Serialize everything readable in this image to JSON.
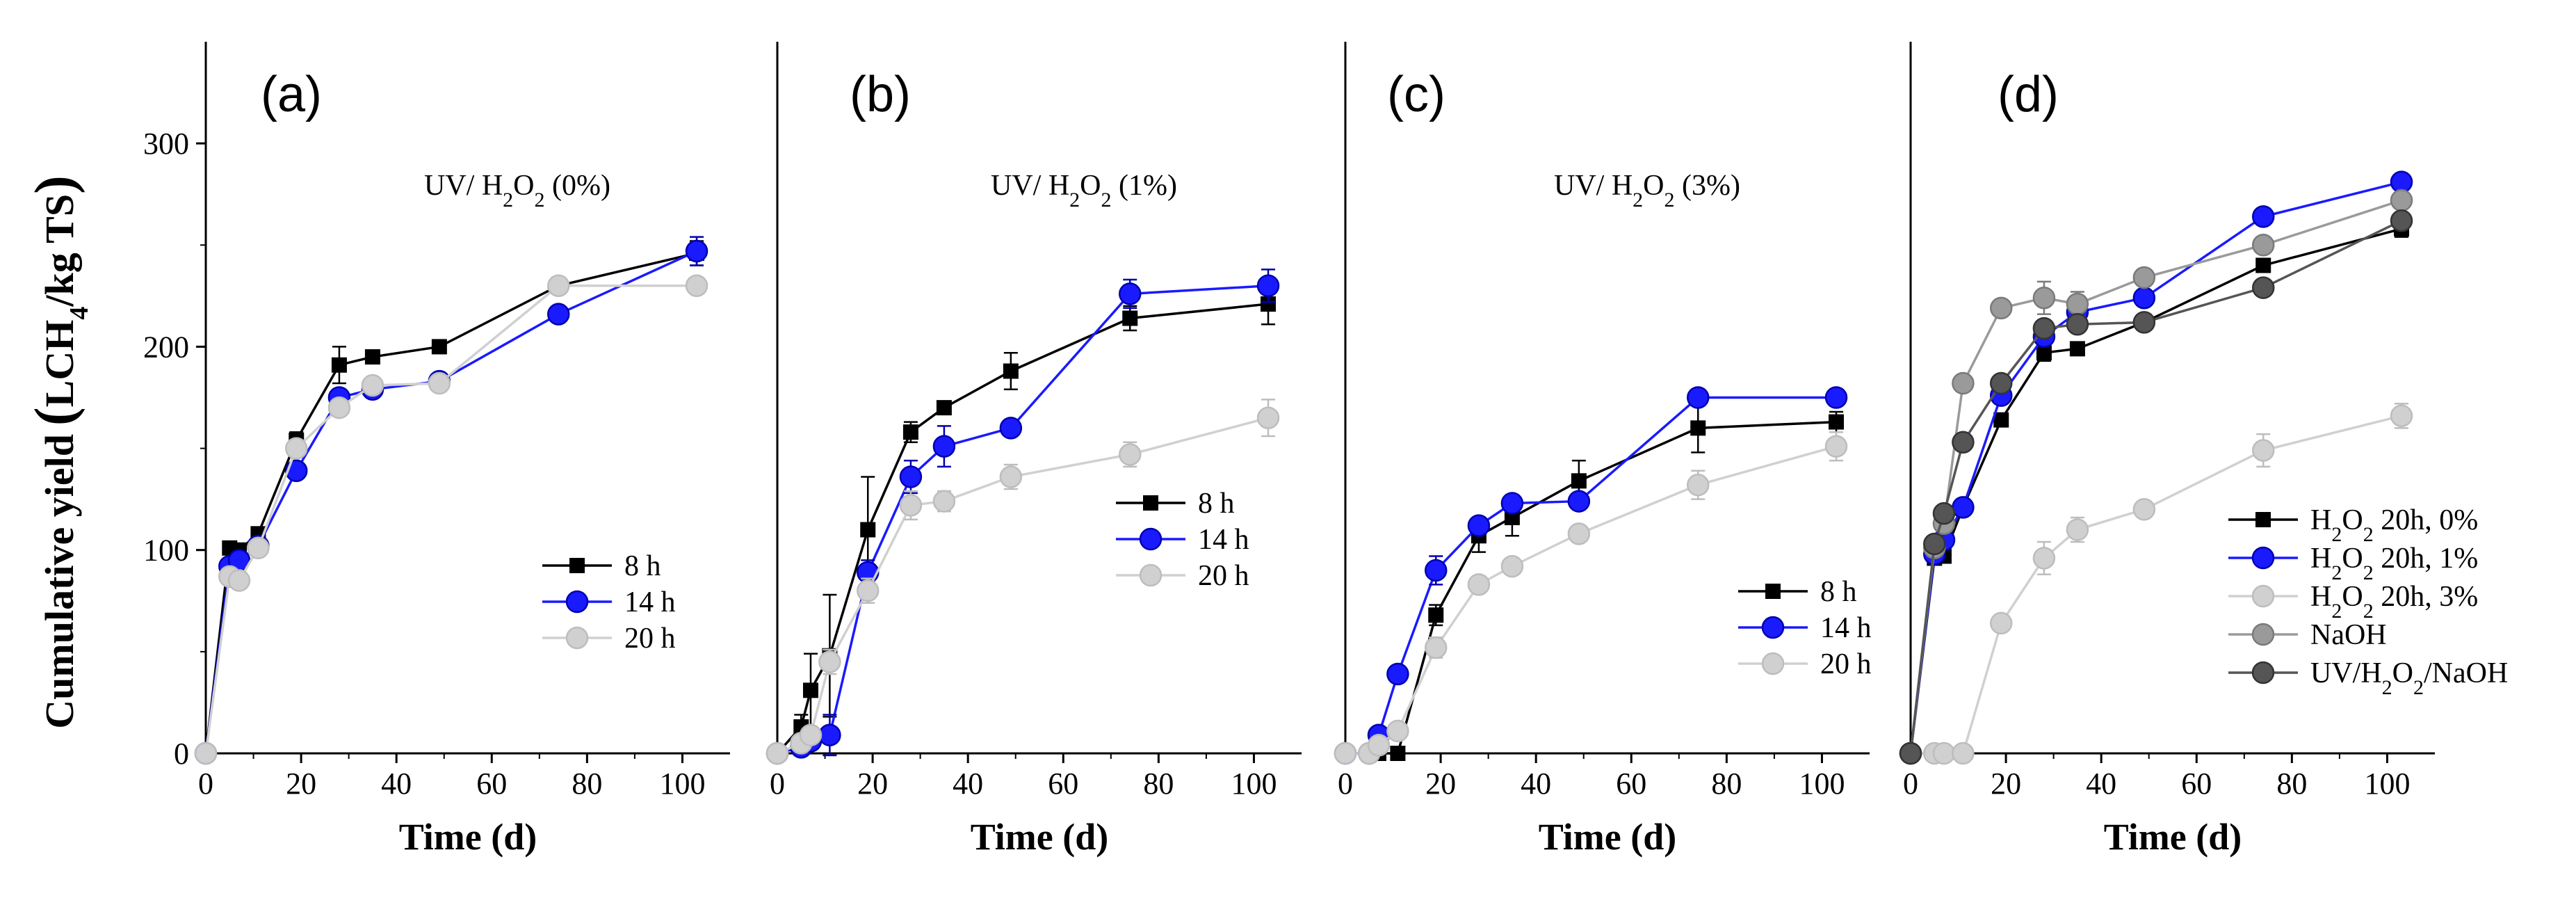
{
  "figure": {
    "y_axis_title": "Cumulative yield (LCH4/kg TS)",
    "y_axis_title_parts": {
      "pre": "Cumulative yield",
      "lpar": "(",
      "unit_a": "LCH",
      "sub": "4",
      "unit_b": "/kg TS",
      "rpar": ")"
    }
  },
  "chart_data": [
    {
      "type": "line",
      "panel_label": "(a)",
      "annotation": {
        "pre": "UV/ H",
        "sub1": "2",
        "mid": "O",
        "sub2": "2",
        "post": " (0%)"
      },
      "xlabel": "Time (d)",
      "ylabel": "Cumulative yield (LCH4/kg TS)",
      "xlim": [
        0,
        110
      ],
      "ylim": [
        0,
        350
      ],
      "x_ticks": [
        0,
        20,
        40,
        60,
        80,
        100
      ],
      "y_ticks": [
        0,
        100,
        200,
        300
      ],
      "legend_position": "center-right",
      "series": [
        {
          "name": "8 h",
          "color": "#000000",
          "marker": "square",
          "x": [
            0,
            5,
            7,
            11,
            19,
            28,
            35,
            49,
            74,
            103
          ],
          "y": [
            0,
            101,
            100,
            108,
            154,
            191,
            195,
            200,
            230,
            246
          ],
          "err": [
            0,
            3,
            3,
            3,
            4,
            9,
            3,
            3,
            4,
            6
          ]
        },
        {
          "name": "14 h",
          "color": "#1a1aff",
          "marker": "circle",
          "x": [
            0,
            5,
            7,
            11,
            19,
            28,
            35,
            49,
            74,
            103
          ],
          "y": [
            0,
            92,
            95,
            102,
            139,
            175,
            179,
            183,
            216,
            247
          ],
          "err": [
            0,
            3,
            3,
            3,
            4,
            4,
            3,
            3,
            3,
            7
          ]
        },
        {
          "name": "20 h",
          "color": "#d0d0d0",
          "marker": "circle",
          "x": [
            0,
            5,
            7,
            11,
            19,
            28,
            35,
            49,
            74,
            103
          ],
          "y": [
            0,
            87,
            85,
            101,
            150,
            170,
            181,
            182,
            230,
            230
          ],
          "err": [
            0,
            3,
            3,
            3,
            4,
            4,
            3,
            4,
            4,
            3
          ]
        }
      ]
    },
    {
      "type": "line",
      "panel_label": "(b)",
      "annotation": {
        "pre": "UV/ H",
        "sub1": "2",
        "mid": "O",
        "sub2": "2",
        "post": " (1%)"
      },
      "xlabel": "Time (d)",
      "ylabel": "",
      "xlim": [
        0,
        110
      ],
      "ylim": [
        0,
        350
      ],
      "x_ticks": [
        0,
        20,
        40,
        60,
        80,
        100
      ],
      "y_ticks": [],
      "legend_position": "center-right",
      "series": [
        {
          "name": "8 h",
          "color": "#000000",
          "marker": "square",
          "x": [
            0,
            5,
            7,
            11,
            19,
            28,
            35,
            49,
            74,
            103
          ],
          "y": [
            0,
            13,
            31,
            48,
            110,
            158,
            170,
            188,
            214,
            221
          ],
          "err": [
            0,
            6,
            18,
            30,
            26,
            5,
            3,
            9,
            6,
            10
          ]
        },
        {
          "name": "14 h",
          "color": "#1a1aff",
          "marker": "circle",
          "x": [
            0,
            5,
            7,
            11,
            19,
            28,
            35,
            49,
            74,
            103
          ],
          "y": [
            0,
            3,
            6,
            9,
            89,
            136,
            151,
            160,
            226,
            230
          ],
          "err": [
            0,
            3,
            3,
            10,
            6,
            8,
            10,
            4,
            7,
            8
          ]
        },
        {
          "name": "20 h",
          "color": "#d0d0d0",
          "marker": "circle",
          "x": [
            0,
            5,
            7,
            11,
            19,
            28,
            35,
            49,
            74,
            103
          ],
          "y": [
            0,
            5,
            9,
            45,
            80,
            122,
            124,
            136,
            147,
            165
          ],
          "err": [
            0,
            3,
            4,
            6,
            6,
            7,
            5,
            6,
            6,
            9
          ]
        }
      ]
    },
    {
      "type": "line",
      "panel_label": "(c)",
      "annotation": {
        "pre": "UV/ H",
        "sub1": "2",
        "mid": "O",
        "sub2": "2",
        "post": " (3%)"
      },
      "xlabel": "Time (d)",
      "ylabel": "",
      "xlim": [
        0,
        110
      ],
      "ylim": [
        0,
        350
      ],
      "x_ticks": [
        0,
        20,
        40,
        60,
        80,
        100
      ],
      "y_ticks": [],
      "legend_position": "center-right",
      "series": [
        {
          "name": "8 h",
          "color": "#000000",
          "marker": "square",
          "x": [
            0,
            5,
            7,
            11,
            19,
            28,
            35,
            49,
            74,
            103
          ],
          "y": [
            0,
            0,
            0,
            0,
            68,
            107,
            116,
            134,
            160,
            163
          ],
          "err": [
            0,
            0,
            0,
            0,
            5,
            8,
            9,
            10,
            12,
            5
          ]
        },
        {
          "name": "14 h",
          "color": "#1a1aff",
          "marker": "circle",
          "x": [
            0,
            5,
            7,
            11,
            19,
            28,
            35,
            49,
            74,
            103
          ],
          "y": [
            0,
            0,
            9,
            39,
            90,
            112,
            123,
            124,
            175,
            175
          ],
          "err": [
            0,
            0,
            2,
            3,
            7,
            4,
            4,
            4,
            4,
            4
          ]
        },
        {
          "name": "20 h",
          "color": "#d0d0d0",
          "marker": "circle",
          "x": [
            0,
            5,
            7,
            11,
            19,
            28,
            35,
            49,
            74,
            103
          ],
          "y": [
            0,
            0,
            4,
            11,
            52,
            83,
            92,
            108,
            132,
            151
          ],
          "err": [
            0,
            0,
            2,
            3,
            5,
            4,
            3,
            4,
            7,
            7
          ]
        }
      ]
    },
    {
      "type": "line",
      "panel_label": "(d)",
      "annotation": null,
      "xlabel": "Time (d)",
      "ylabel": "",
      "xlim": [
        0,
        110
      ],
      "ylim": [
        0,
        350
      ],
      "x_ticks": [
        0,
        20,
        40,
        60,
        80,
        100
      ],
      "y_ticks": [],
      "legend_position": "bottom-right",
      "series": [
        {
          "name": "H2O2 20h, 0%",
          "label_parts": {
            "a": "H",
            "s1": "2",
            "b": "O",
            "s2": "2",
            "c": " 20h, 0%"
          },
          "color": "#000000",
          "marker": "square",
          "x": [
            0,
            5,
            7,
            11,
            19,
            28,
            35,
            49,
            74,
            103
          ],
          "y": [
            0,
            96,
            97,
            121,
            164,
            197,
            199,
            212,
            240,
            258
          ],
          "err": [
            0,
            3,
            3,
            3,
            3,
            4,
            3,
            3,
            3,
            4
          ]
        },
        {
          "name": "H2O2 20h, 1%",
          "label_parts": {
            "a": "H",
            "s1": "2",
            "b": "O",
            "s2": "2",
            "c": " 20h, 1%"
          },
          "color": "#1a1aff",
          "marker": "circle",
          "x": [
            0,
            5,
            7,
            11,
            19,
            28,
            35,
            49,
            74,
            103
          ],
          "y": [
            0,
            98,
            105,
            121,
            176,
            205,
            217,
            224,
            264,
            281
          ],
          "err": [
            0,
            3,
            3,
            3,
            4,
            4,
            5,
            4,
            3,
            4
          ]
        },
        {
          "name": "H2O2 20h, 3%",
          "label_parts": {
            "a": "H",
            "s1": "2",
            "b": "O",
            "s2": "2",
            "c": " 20h, 3%"
          },
          "color": "#d0d0d0",
          "marker": "circle",
          "x": [
            0,
            5,
            7,
            11,
            19,
            28,
            35,
            49,
            74,
            103
          ],
          "y": [
            0,
            0,
            0,
            0,
            64,
            96,
            110,
            120,
            149,
            166
          ],
          "err": [
            0,
            0,
            0,
            0,
            3,
            8,
            6,
            4,
            8,
            6
          ]
        },
        {
          "name": "NaOH",
          "label_parts": {
            "a": "NaOH"
          },
          "color": "#9a9a9a",
          "marker": "circle",
          "x": [
            0,
            5,
            7,
            11,
            19,
            28,
            35,
            49,
            74,
            103
          ],
          "y": [
            0,
            101,
            113,
            182,
            219,
            224,
            221,
            234,
            250,
            272
          ],
          "err": [
            0,
            3,
            3,
            3,
            3,
            8,
            6,
            4,
            3,
            4
          ]
        },
        {
          "name": "UV/H2O2/NaOH",
          "label_parts": {
            "a": "UV/H",
            "s1": "2",
            "b": "O",
            "s2": "2",
            "c": "/NaOH"
          },
          "color": "#555555",
          "marker": "circle",
          "x": [
            0,
            5,
            7,
            11,
            19,
            28,
            35,
            49,
            74,
            103
          ],
          "y": [
            0,
            103,
            118,
            153,
            182,
            209,
            211,
            212,
            229,
            262
          ],
          "err": [
            0,
            3,
            3,
            3,
            3,
            4,
            3,
            3,
            3,
            4
          ]
        }
      ]
    }
  ]
}
